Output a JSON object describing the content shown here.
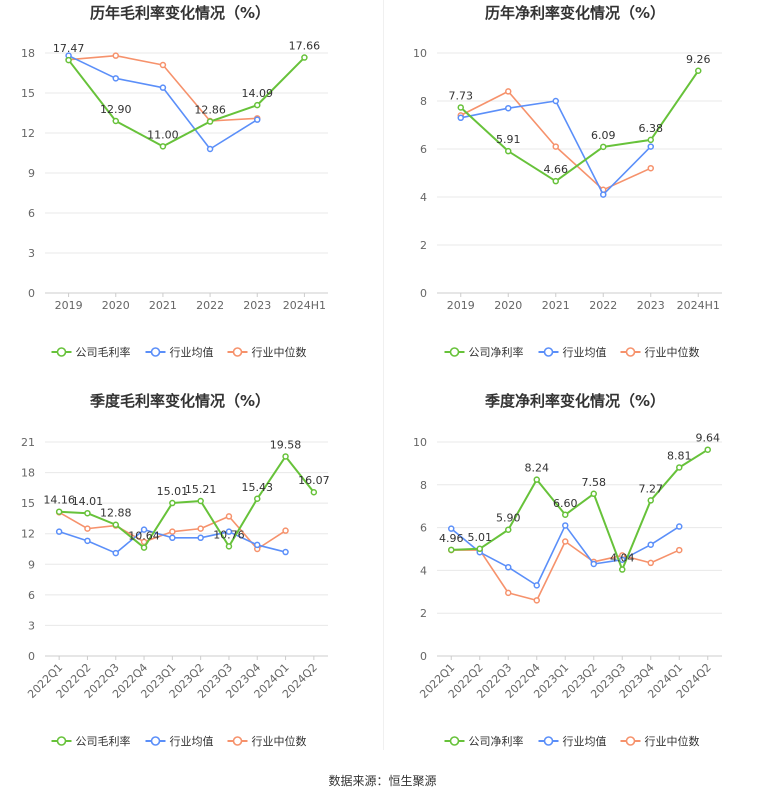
{
  "colors": {
    "company": "#67c23a",
    "industry_avg": "#5b8ff9",
    "industry_median": "#f6926c",
    "grid": "#e8e8e8",
    "axis_text": "#666666",
    "title_text": "#333333",
    "label_text": "#333333"
  },
  "source": "数据来源：恒生聚源",
  "chart_data": [
    {
      "type": "line",
      "title": "历年毛利率变化情况（%）",
      "categories": [
        "2019",
        "2020",
        "2021",
        "2022",
        "2023",
        "2024H1"
      ],
      "ylim": [
        0,
        18
      ],
      "yticks": [
        0,
        3,
        6,
        9,
        12,
        15,
        18
      ],
      "grid": true,
      "legend": "bottom",
      "series": [
        {
          "name": "公司毛利率",
          "key": "company",
          "values": [
            17.47,
            12.9,
            11.0,
            12.86,
            14.09,
            17.66
          ],
          "labels": [
            "17.47",
            "12.90",
            "11.00",
            "12.86",
            "14.09",
            "17.66"
          ]
        },
        {
          "name": "行业均值",
          "key": "industry_avg",
          "values": [
            17.8,
            16.1,
            15.4,
            10.8,
            13.0,
            null
          ]
        },
        {
          "name": "行业中位数",
          "key": "industry_median",
          "values": [
            17.5,
            17.8,
            17.1,
            12.9,
            13.1,
            null
          ]
        }
      ]
    },
    {
      "type": "line",
      "title": "历年净利率变化情况（%）",
      "categories": [
        "2019",
        "2020",
        "2021",
        "2022",
        "2023",
        "2024H1"
      ],
      "ylim": [
        0,
        10
      ],
      "yticks": [
        0,
        2,
        4,
        6,
        8,
        10
      ],
      "grid": true,
      "legend": "bottom",
      "series": [
        {
          "name": "公司净利率",
          "key": "company",
          "values": [
            7.73,
            5.91,
            4.66,
            6.09,
            6.38,
            9.26
          ],
          "labels": [
            "7.73",
            "5.91",
            "4.66",
            "6.09",
            "6.38",
            "9.26"
          ]
        },
        {
          "name": "行业均值",
          "key": "industry_avg",
          "values": [
            7.3,
            7.7,
            8.0,
            4.1,
            6.1,
            null
          ]
        },
        {
          "name": "行业中位数",
          "key": "industry_median",
          "values": [
            7.4,
            8.4,
            6.1,
            4.3,
            5.2,
            null
          ]
        }
      ]
    },
    {
      "type": "line",
      "title": "季度毛利率变化情况（%）",
      "categories": [
        "2022Q1",
        "2022Q2",
        "2022Q3",
        "2022Q4",
        "2023Q1",
        "2023Q2",
        "2023Q3",
        "2023Q4",
        "2024Q1",
        "2024Q2"
      ],
      "ylim": [
        0,
        21
      ],
      "yticks": [
        0,
        3,
        6,
        9,
        12,
        15,
        18,
        21
      ],
      "grid": true,
      "legend": "bottom",
      "series": [
        {
          "name": "公司毛利率",
          "key": "company",
          "values": [
            14.16,
            14.01,
            12.88,
            10.64,
            15.01,
            15.21,
            10.76,
            15.43,
            19.58,
            16.07
          ],
          "labels": [
            "14.16",
            "14.01",
            "12.88",
            "10.64",
            "15.01",
            "15.21",
            "10.76",
            "15.43",
            "19.58",
            "16.07"
          ]
        },
        {
          "name": "行业均值",
          "key": "industry_avg",
          "values": [
            12.2,
            11.3,
            10.1,
            12.4,
            11.6,
            11.6,
            12.2,
            10.9,
            10.2,
            null
          ]
        },
        {
          "name": "行业中位数",
          "key": "industry_median",
          "values": [
            14.1,
            12.5,
            12.8,
            11.2,
            12.2,
            12.5,
            13.7,
            10.5,
            12.3,
            null
          ]
        }
      ]
    },
    {
      "type": "line",
      "title": "季度净利率变化情况（%）",
      "categories": [
        "2022Q1",
        "2022Q2",
        "2022Q3",
        "2022Q4",
        "2023Q1",
        "2023Q2",
        "2023Q3",
        "2023Q4",
        "2024Q1",
        "2024Q2"
      ],
      "ylim": [
        0,
        10
      ],
      "yticks": [
        0,
        2,
        4,
        6,
        8,
        10
      ],
      "grid": true,
      "legend": "bottom",
      "series": [
        {
          "name": "公司净利率",
          "key": "company",
          "values": [
            4.96,
            5.01,
            5.9,
            8.24,
            6.6,
            7.58,
            4.04,
            7.27,
            8.81,
            9.64
          ],
          "labels": [
            "4.96",
            "5.01",
            "5.90",
            "8.24",
            "6.60",
            "7.58",
            "4.04",
            "7.27",
            "8.81",
            "9.64"
          ]
        },
        {
          "name": "行业均值",
          "key": "industry_avg",
          "values": [
            5.95,
            4.85,
            4.15,
            3.3,
            6.1,
            4.3,
            4.5,
            5.2,
            6.05,
            null
          ]
        },
        {
          "name": "行业中位数",
          "key": "industry_median",
          "values": [
            4.95,
            4.95,
            2.95,
            2.6,
            5.35,
            4.4,
            4.7,
            4.35,
            4.95,
            null
          ]
        }
      ]
    }
  ]
}
